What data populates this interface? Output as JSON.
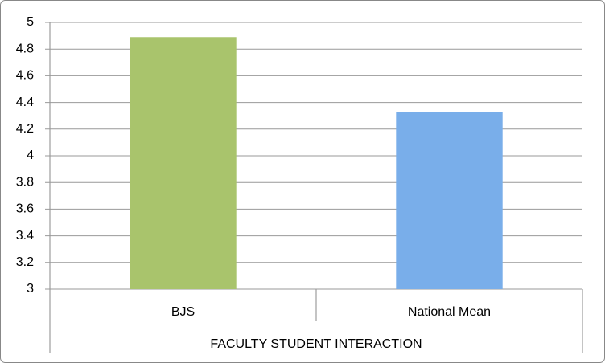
{
  "chart_data": {
    "type": "bar",
    "x_label": "FACULTY STUDENT INTERACTION",
    "categories": [
      "BJS",
      "National Mean"
    ],
    "values": [
      4.89,
      4.33
    ],
    "colors": [
      "#a9c46c",
      "#79aeea"
    ],
    "ylim": [
      3,
      5
    ],
    "yticks": [
      3,
      3.2,
      3.4,
      3.6,
      3.8,
      4,
      4.2,
      4.4,
      4.6,
      4.8,
      5
    ],
    "grid": true
  }
}
